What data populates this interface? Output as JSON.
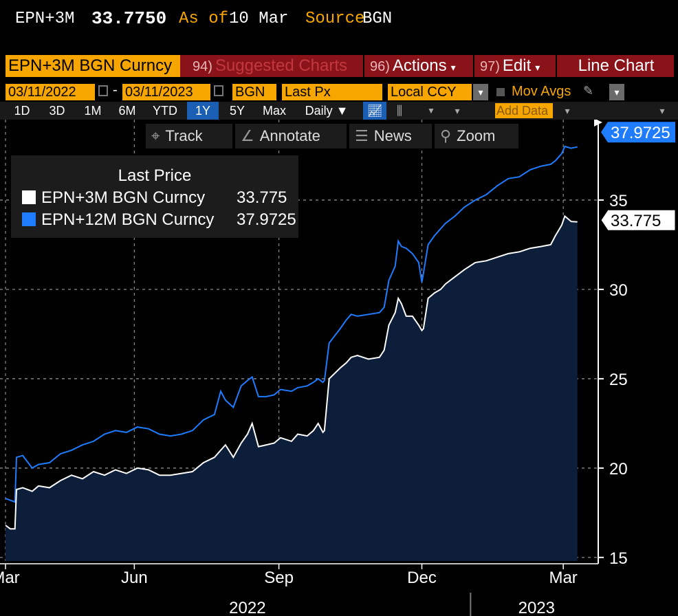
{
  "quote": {
    "ticker": "EPN+3M",
    "price": "33.7750",
    "as_of_label": "As of",
    "as_of_value": "10 Mar",
    "source_label": "Source",
    "source_value": "BGN"
  },
  "function_bar": {
    "security": "EPN+3M BGN Curncy",
    "suggested_num": "94)",
    "suggested_label": "Suggested Charts",
    "actions_num": "96)",
    "actions_label": "Actions",
    "edit_num": "97)",
    "edit_label": "Edit",
    "chart_type": "Line Chart"
  },
  "settings": {
    "start_date": "03/11/2022",
    "end_date": "03/11/2023",
    "source": "BGN",
    "field": "Last Px",
    "currency": "Local CCY",
    "mov_avgs_label": "Mov Avgs"
  },
  "range_buttons": [
    "1D",
    "3D",
    "1M",
    "6M",
    "YTD",
    "1Y",
    "5Y",
    "Max"
  ],
  "active_range": "1Y",
  "periodicity": "Daily",
  "add_data_placeholder": "Add Data",
  "toolbar": {
    "track": "Track",
    "annotate": "Annotate",
    "news": "News",
    "zoom": "Zoom"
  },
  "legend": {
    "title": "Last Price",
    "items": [
      {
        "name": "EPN+3M BGN Curncy",
        "value": "33.775",
        "color": "#ffffff"
      },
      {
        "name": "EPN+12M BGN Curncy",
        "value": "37.9725",
        "color": "#1f7cff"
      }
    ]
  },
  "colors": {
    "accent_orange": "#f7a600",
    "function_bar_red": "#8a1219",
    "series_3m": "#ffffff",
    "series_12m": "#1f7cff",
    "area_fill_3m": "#0c1e3a"
  },
  "chart_data": {
    "type": "line",
    "title": "",
    "xlabel": "",
    "ylabel": "",
    "x_tick_labels": [
      "Mar",
      "Jun",
      "Sep",
      "Dec",
      "Mar"
    ],
    "x_tick_dates": [
      "2022-03-11",
      "2022-06-01",
      "2022-09-01",
      "2022-12-01",
      "2023-03-01"
    ],
    "year_labels": [
      "2022",
      "2023"
    ],
    "xlim": [
      "2022-03-11",
      "2023-03-11"
    ],
    "ylim": [
      14.8,
      39.5
    ],
    "y_ticks": [
      15,
      20,
      25,
      30,
      35
    ],
    "grid": true,
    "legend_position": "top-left",
    "last_value_labels": [
      "37.9725",
      "33.775"
    ],
    "series": [
      {
        "name": "EPN+3M BGN Curncy",
        "color": "#ffffff",
        "fill": true,
        "points": [
          [
            "2022-03-11",
            16.8
          ],
          [
            "2022-03-14",
            16.6
          ],
          [
            "2022-03-17",
            16.6
          ],
          [
            "2022-03-18",
            18.8
          ],
          [
            "2022-03-22",
            18.9
          ],
          [
            "2022-03-28",
            18.7
          ],
          [
            "2022-04-01",
            19.0
          ],
          [
            "2022-04-08",
            18.9
          ],
          [
            "2022-04-15",
            19.3
          ],
          [
            "2022-04-22",
            19.6
          ],
          [
            "2022-04-29",
            19.4
          ],
          [
            "2022-05-06",
            19.8
          ],
          [
            "2022-05-13",
            19.6
          ],
          [
            "2022-05-20",
            19.9
          ],
          [
            "2022-05-27",
            19.7
          ],
          [
            "2022-06-03",
            20.0
          ],
          [
            "2022-06-10",
            19.9
          ],
          [
            "2022-06-17",
            19.6
          ],
          [
            "2022-06-24",
            19.6
          ],
          [
            "2022-07-01",
            19.7
          ],
          [
            "2022-07-08",
            19.8
          ],
          [
            "2022-07-15",
            20.3
          ],
          [
            "2022-07-22",
            20.6
          ],
          [
            "2022-07-26",
            21.0
          ],
          [
            "2022-07-29",
            21.3
          ],
          [
            "2022-08-03",
            20.6
          ],
          [
            "2022-08-08",
            21.4
          ],
          [
            "2022-08-12",
            21.9
          ],
          [
            "2022-08-15",
            22.5
          ],
          [
            "2022-08-19",
            21.2
          ],
          [
            "2022-08-24",
            21.3
          ],
          [
            "2022-08-29",
            21.4
          ],
          [
            "2022-09-02",
            21.7
          ],
          [
            "2022-09-09",
            21.5
          ],
          [
            "2022-09-13",
            21.9
          ],
          [
            "2022-09-19",
            21.8
          ],
          [
            "2022-09-23",
            22.1
          ],
          [
            "2022-09-26",
            22.5
          ],
          [
            "2022-09-29",
            22.0
          ],
          [
            "2022-09-30",
            22.1
          ],
          [
            "2022-10-03",
            25.0
          ],
          [
            "2022-10-10",
            25.6
          ],
          [
            "2022-10-14",
            25.9
          ],
          [
            "2022-10-17",
            26.2
          ],
          [
            "2022-10-21",
            26.3
          ],
          [
            "2022-10-28",
            26.1
          ],
          [
            "2022-11-04",
            26.2
          ],
          [
            "2022-11-07",
            26.6
          ],
          [
            "2022-11-10",
            28.0
          ],
          [
            "2022-11-14",
            28.7
          ],
          [
            "2022-11-16",
            29.5
          ],
          [
            "2022-11-18",
            29.2
          ],
          [
            "2022-11-21",
            28.5
          ],
          [
            "2022-11-25",
            28.5
          ],
          [
            "2022-11-29",
            28.0
          ],
          [
            "2022-12-01",
            27.7
          ],
          [
            "2022-12-02",
            27.8
          ],
          [
            "2022-12-05",
            29.5
          ],
          [
            "2022-12-09",
            29.8
          ],
          [
            "2022-12-13",
            30.0
          ],
          [
            "2022-12-16",
            30.3
          ],
          [
            "2022-12-22",
            30.7
          ],
          [
            "2022-12-28",
            31.1
          ],
          [
            "2023-01-04",
            31.5
          ],
          [
            "2023-01-11",
            31.6
          ],
          [
            "2023-01-18",
            31.8
          ],
          [
            "2023-01-25",
            32.0
          ],
          [
            "2023-02-01",
            32.1
          ],
          [
            "2023-02-08",
            32.3
          ],
          [
            "2023-02-15",
            32.4
          ],
          [
            "2023-02-21",
            32.5
          ],
          [
            "2023-02-24",
            33.0
          ],
          [
            "2023-02-28",
            33.6
          ],
          [
            "2023-03-02",
            34.1
          ],
          [
            "2023-03-06",
            33.8
          ],
          [
            "2023-03-10",
            33.775
          ]
        ]
      },
      {
        "name": "EPN+12M BGN Curncy",
        "color": "#1f7cff",
        "fill": false,
        "points": [
          [
            "2022-03-11",
            18.3
          ],
          [
            "2022-03-14",
            18.2
          ],
          [
            "2022-03-17",
            18.1
          ],
          [
            "2022-03-18",
            20.6
          ],
          [
            "2022-03-22",
            20.7
          ],
          [
            "2022-03-28",
            20.0
          ],
          [
            "2022-04-01",
            20.2
          ],
          [
            "2022-04-08",
            20.3
          ],
          [
            "2022-04-15",
            20.8
          ],
          [
            "2022-04-22",
            21.0
          ],
          [
            "2022-04-29",
            21.3
          ],
          [
            "2022-05-06",
            21.5
          ],
          [
            "2022-05-13",
            21.9
          ],
          [
            "2022-05-20",
            22.1
          ],
          [
            "2022-05-27",
            22.0
          ],
          [
            "2022-06-03",
            22.3
          ],
          [
            "2022-06-10",
            22.2
          ],
          [
            "2022-06-17",
            21.9
          ],
          [
            "2022-06-24",
            21.8
          ],
          [
            "2022-07-01",
            21.9
          ],
          [
            "2022-07-08",
            22.1
          ],
          [
            "2022-07-15",
            22.7
          ],
          [
            "2022-07-22",
            23.0
          ],
          [
            "2022-07-26",
            24.3
          ],
          [
            "2022-07-29",
            23.8
          ],
          [
            "2022-08-03",
            23.4
          ],
          [
            "2022-08-08",
            24.6
          ],
          [
            "2022-08-12",
            24.9
          ],
          [
            "2022-08-15",
            25.1
          ],
          [
            "2022-08-19",
            24.0
          ],
          [
            "2022-08-24",
            24.0
          ],
          [
            "2022-08-29",
            24.1
          ],
          [
            "2022-09-02",
            24.4
          ],
          [
            "2022-09-09",
            24.3
          ],
          [
            "2022-09-13",
            24.5
          ],
          [
            "2022-09-19",
            24.6
          ],
          [
            "2022-09-23",
            24.8
          ],
          [
            "2022-09-26",
            25.0
          ],
          [
            "2022-09-29",
            24.8
          ],
          [
            "2022-09-30",
            24.9
          ],
          [
            "2022-10-03",
            27.0
          ],
          [
            "2022-10-10",
            27.8
          ],
          [
            "2022-10-14",
            28.3
          ],
          [
            "2022-10-17",
            28.6
          ],
          [
            "2022-10-21",
            28.5
          ],
          [
            "2022-10-28",
            28.6
          ],
          [
            "2022-11-04",
            28.7
          ],
          [
            "2022-11-07",
            29.0
          ],
          [
            "2022-11-10",
            30.5
          ],
          [
            "2022-11-14",
            31.3
          ],
          [
            "2022-11-16",
            32.7
          ],
          [
            "2022-11-18",
            32.4
          ],
          [
            "2022-11-21",
            32.3
          ],
          [
            "2022-11-25",
            32.0
          ],
          [
            "2022-11-29",
            31.5
          ],
          [
            "2022-12-01",
            30.4
          ],
          [
            "2022-12-02",
            30.9
          ],
          [
            "2022-12-05",
            32.5
          ],
          [
            "2022-12-09",
            33.0
          ],
          [
            "2022-12-13",
            33.4
          ],
          [
            "2022-12-16",
            33.7
          ],
          [
            "2022-12-22",
            34.1
          ],
          [
            "2022-12-28",
            34.6
          ],
          [
            "2023-01-04",
            35.0
          ],
          [
            "2023-01-11",
            35.3
          ],
          [
            "2023-01-18",
            35.8
          ],
          [
            "2023-01-25",
            36.2
          ],
          [
            "2023-02-01",
            36.3
          ],
          [
            "2023-02-08",
            36.7
          ],
          [
            "2023-02-15",
            36.9
          ],
          [
            "2023-02-21",
            37.0
          ],
          [
            "2023-02-24",
            37.2
          ],
          [
            "2023-02-28",
            37.6
          ],
          [
            "2023-03-02",
            38.0
          ],
          [
            "2023-03-06",
            37.9
          ],
          [
            "2023-03-10",
            37.9725
          ]
        ]
      }
    ]
  }
}
